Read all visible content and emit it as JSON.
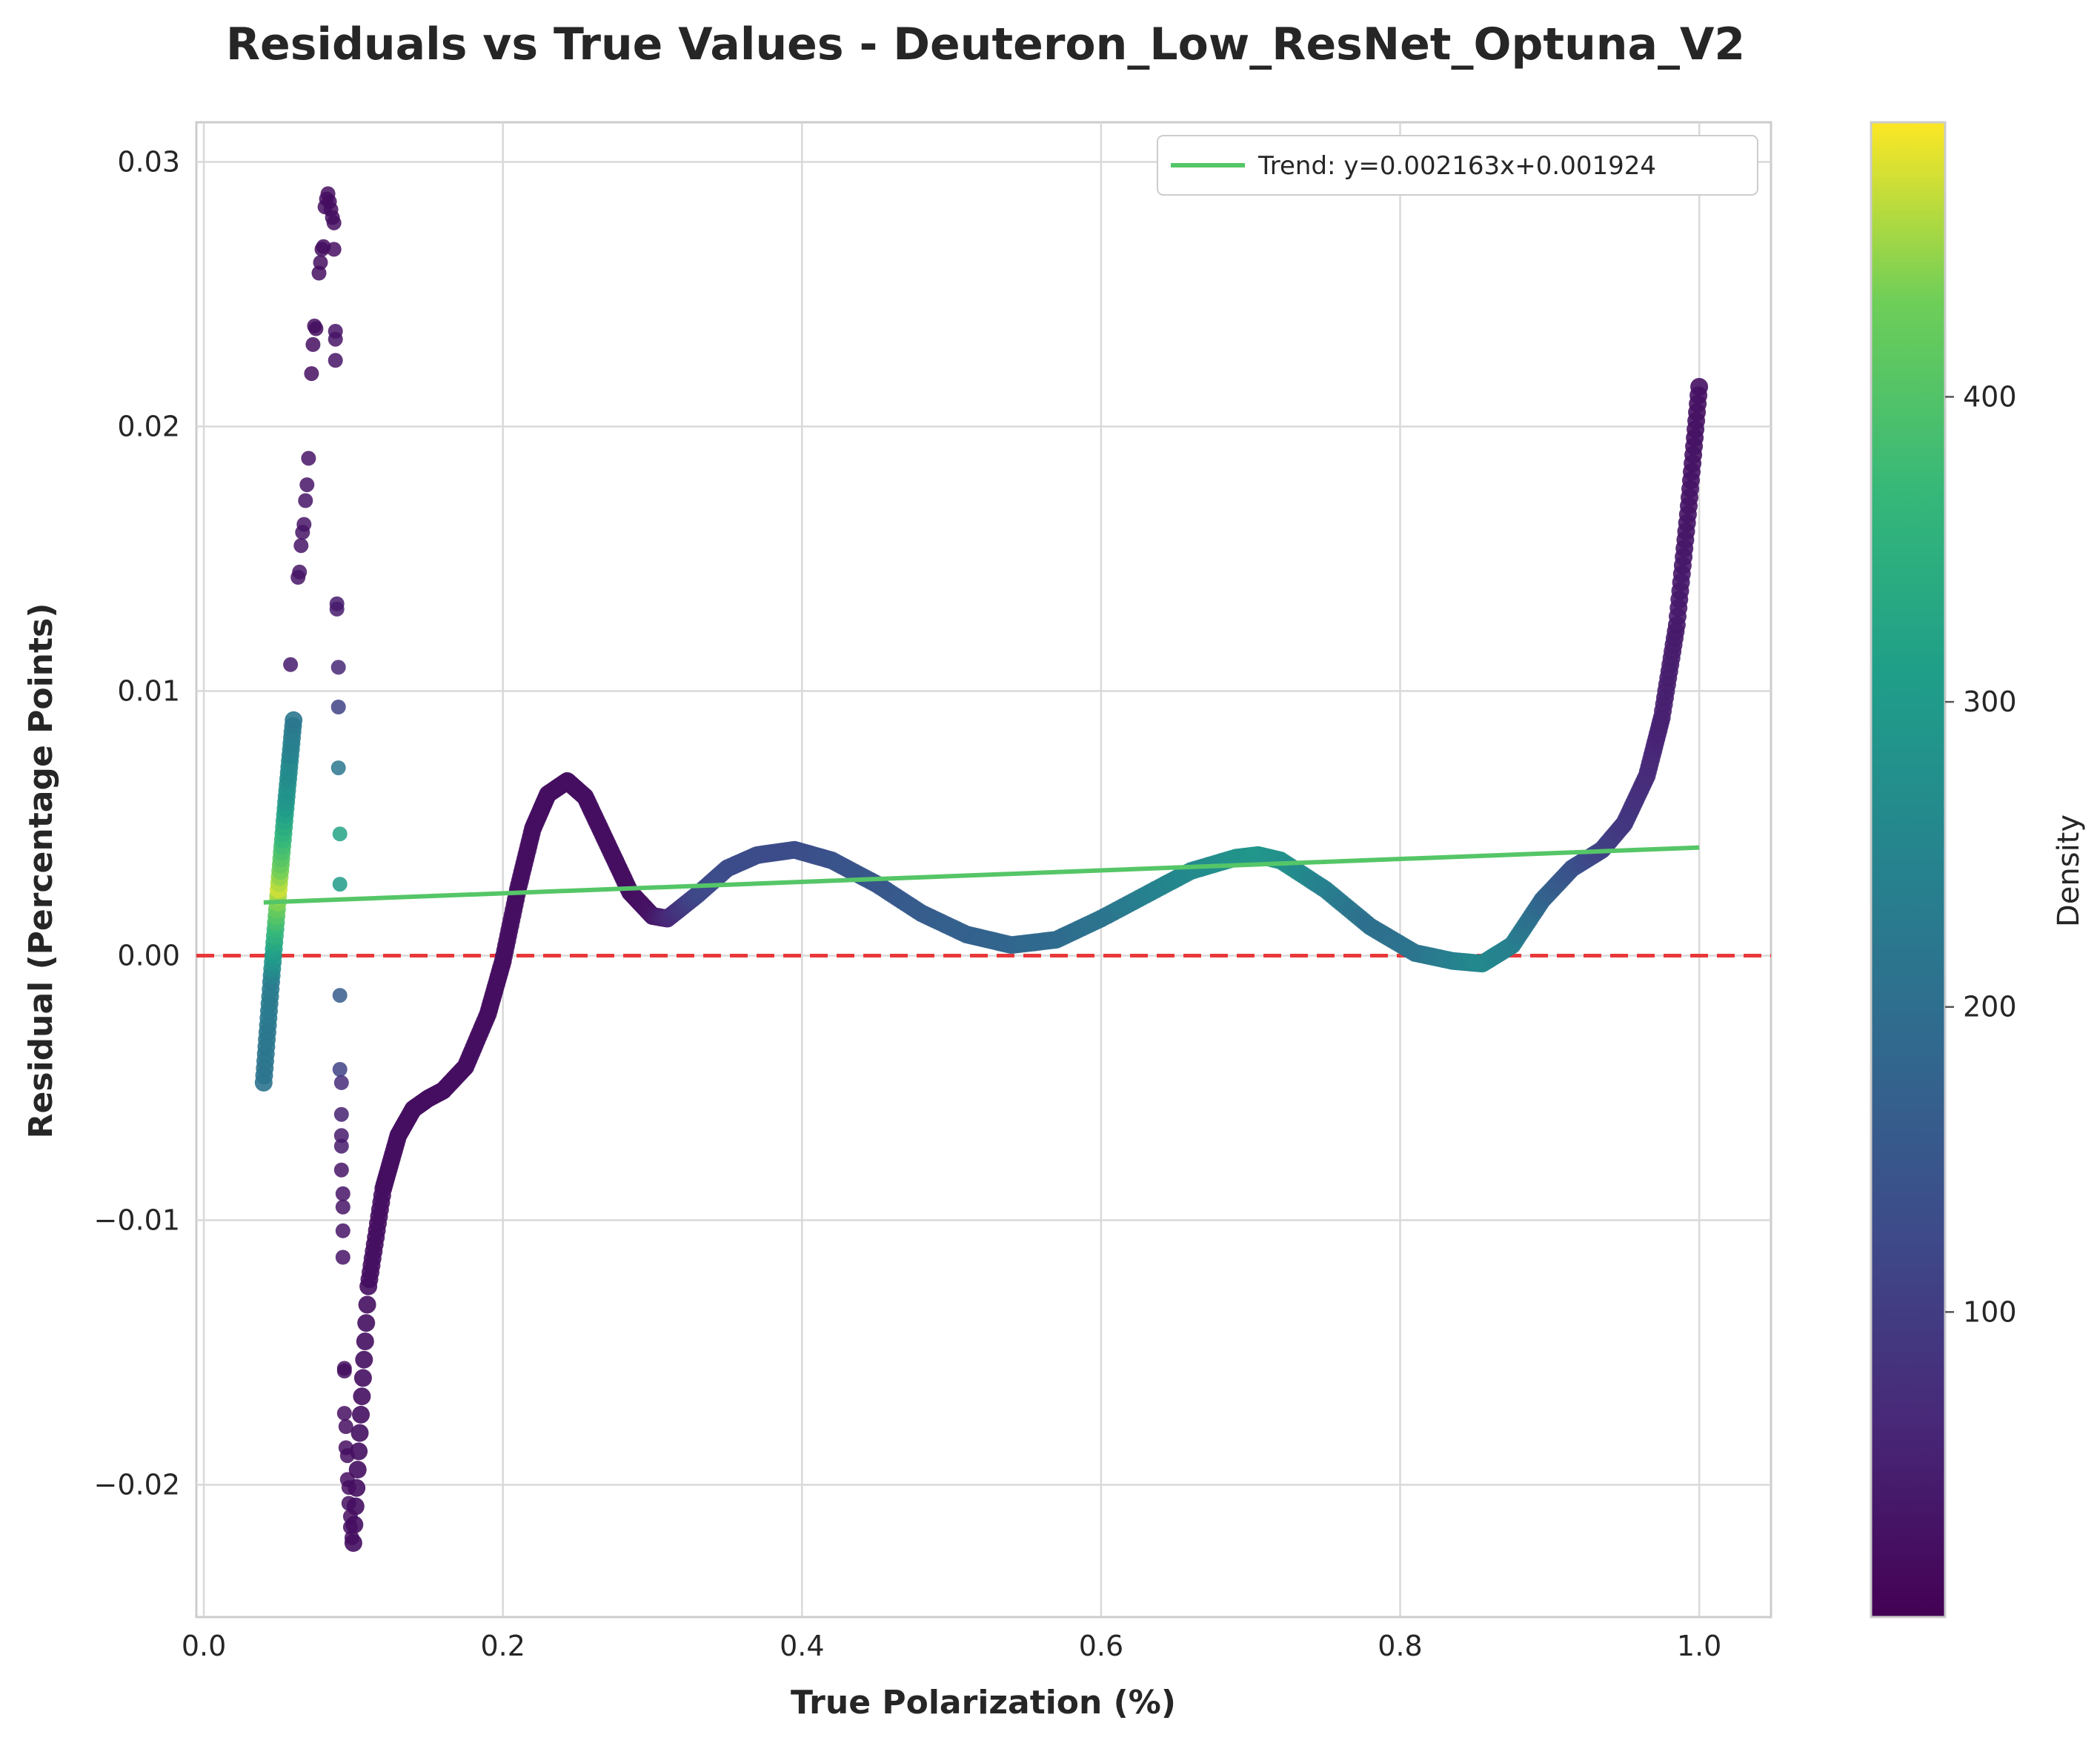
{
  "chart_data": {
    "type": "scatter",
    "title": "Residuals vs True Values - Deuteron_Low_ResNet_Optuna_V2",
    "xlabel": "True Polarization (%)",
    "ylabel": "Residual (Percentage Points)",
    "xlim": [
      -0.005,
      1.048
    ],
    "ylim": [
      -0.025,
      0.0315
    ],
    "x_ticks": [
      0.0,
      0.2,
      0.4,
      0.6,
      0.8,
      1.0
    ],
    "x_tick_labels": [
      "0.0",
      "0.2",
      "0.4",
      "0.6",
      "0.8",
      "1.0"
    ],
    "y_ticks": [
      -0.02,
      -0.01,
      0.0,
      0.01,
      0.02,
      0.03
    ],
    "y_tick_labels": [
      "−0.02",
      "−0.01",
      "0.00",
      "0.01",
      "0.02",
      "0.03"
    ],
    "grid": true,
    "colormap": "viridis",
    "colorbar": {
      "label": "Density",
      "range": [
        0,
        490
      ],
      "ticks": [
        100,
        200,
        300,
        400
      ],
      "tick_labels": [
        "100",
        "200",
        "300",
        "400"
      ]
    },
    "zero_line": {
      "y": 0.0,
      "color": "#e8383a",
      "style": "dashed"
    },
    "trend_line": {
      "label": "Trend: y=0.002163x+0.001924",
      "slope": 0.002163,
      "intercept": 0.001924,
      "x_range": [
        0.04,
        1.0
      ],
      "color": "#55c667"
    },
    "legend_position": "top-right",
    "series": [
      {
        "kind": "curve",
        "x": [
          0.04,
          0.045,
          0.05,
          0.055,
          0.06
        ],
        "y": [
          -0.0048,
          -0.001,
          0.0025,
          0.0058,
          0.0089
        ],
        "density": [
          210,
          230,
          470,
          290,
          220
        ]
      },
      {
        "kind": "curve",
        "x": [
          0.1,
          0.11,
          0.12,
          0.13,
          0.14,
          0.15,
          0.16,
          0.175,
          0.19,
          0.2,
          0.21,
          0.22,
          0.23,
          0.243,
          0.255,
          0.27,
          0.285,
          0.3,
          0.31,
          0.33,
          0.35,
          0.37,
          0.395,
          0.42,
          0.45,
          0.48,
          0.51,
          0.54,
          0.57,
          0.6,
          0.63,
          0.66,
          0.69,
          0.705,
          0.72,
          0.75,
          0.78,
          0.81,
          0.835,
          0.855,
          0.875,
          0.895,
          0.915,
          0.935,
          0.95,
          0.965,
          0.975,
          0.985,
          0.993,
          1.0
        ],
        "y": [
          -0.0222,
          -0.0125,
          -0.0088,
          -0.0068,
          -0.0058,
          -0.0054,
          -0.0051,
          -0.0042,
          -0.0022,
          -0.0002,
          0.0025,
          0.0048,
          0.0061,
          0.0066,
          0.006,
          0.0042,
          0.0024,
          0.0015,
          0.0014,
          0.0023,
          0.0033,
          0.0038,
          0.004,
          0.0036,
          0.0027,
          0.0016,
          0.0008,
          0.0004,
          0.0006,
          0.0014,
          0.0023,
          0.0032,
          0.0037,
          0.0038,
          0.0036,
          0.0025,
          0.0011,
          0.0001,
          -0.0002,
          -0.0003,
          0.0004,
          0.0021,
          0.0033,
          0.004,
          0.005,
          0.0068,
          0.009,
          0.0125,
          0.017,
          0.0215
        ],
        "density": [
          20,
          20,
          20,
          20,
          20,
          20,
          20,
          20,
          20,
          20,
          20,
          20,
          20,
          20,
          20,
          20,
          20,
          30,
          60,
          120,
          130,
          130,
          130,
          140,
          150,
          160,
          170,
          180,
          190,
          210,
          240,
          260,
          280,
          290,
          280,
          240,
          200,
          210,
          240,
          260,
          240,
          180,
          140,
          110,
          90,
          70,
          50,
          40,
          30,
          25
        ]
      },
      {
        "kind": "points",
        "x": [
          0.058,
          0.063,
          0.064,
          0.065,
          0.066,
          0.067,
          0.068,
          0.069,
          0.07,
          0.072,
          0.073,
          0.074,
          0.075,
          0.077,
          0.078,
          0.079,
          0.08,
          0.081,
          0.082,
          0.083,
          0.084,
          0.085,
          0.086,
          0.087,
          0.087,
          0.088,
          0.088,
          0.088,
          0.089,
          0.089,
          0.09,
          0.09,
          0.09,
          0.091,
          0.091,
          0.091,
          0.091,
          0.092,
          0.092,
          0.092,
          0.092,
          0.092,
          0.093,
          0.093,
          0.093,
          0.093,
          0.094,
          0.094,
          0.094,
          0.095,
          0.095,
          0.096,
          0.096,
          0.097,
          0.097,
          0.098,
          0.098,
          0.099
        ],
        "y": [
          0.011,
          0.0143,
          0.0145,
          0.0155,
          0.016,
          0.0163,
          0.0172,
          0.0178,
          0.0188,
          0.022,
          0.0231,
          0.0238,
          0.0237,
          0.0258,
          0.0262,
          0.0267,
          0.0268,
          0.0283,
          0.0286,
          0.0288,
          0.0285,
          0.0282,
          0.0279,
          0.0277,
          0.0267,
          0.0236,
          0.0233,
          0.0225,
          0.0133,
          0.0131,
          0.0109,
          0.0094,
          0.0071,
          0.0046,
          0.0027,
          -0.0015,
          -0.0043,
          -0.0048,
          -0.006,
          -0.0068,
          -0.0072,
          -0.0081,
          -0.009,
          -0.0095,
          -0.0104,
          -0.0114,
          -0.0156,
          -0.0157,
          -0.0173,
          -0.0178,
          -0.0186,
          -0.0189,
          -0.0198,
          -0.0201,
          -0.0207,
          -0.0212,
          -0.0216,
          -0.022
        ],
        "density": [
          40,
          30,
          30,
          30,
          30,
          30,
          30,
          30,
          30,
          20,
          20,
          20,
          20,
          20,
          20,
          20,
          20,
          20,
          20,
          20,
          20,
          20,
          20,
          20,
          20,
          30,
          30,
          30,
          40,
          40,
          60,
          110,
          220,
          320,
          300,
          160,
          110,
          70,
          50,
          40,
          40,
          30,
          30,
          30,
          30,
          30,
          20,
          20,
          20,
          20,
          20,
          20,
          20,
          20,
          20,
          20,
          20,
          20
        ]
      }
    ]
  }
}
